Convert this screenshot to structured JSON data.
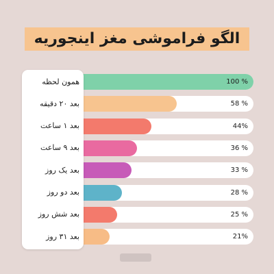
{
  "title": "الگو فراموشی مغز اینجوریه",
  "chart_data": {
    "type": "bar",
    "orientation": "horizontal",
    "xlim": [
      0,
      100
    ],
    "categories": [
      "همون لحظه",
      "بعد ۲۰ دقیقه",
      "بعد ۱ ساعت",
      "بعد ۹ ساعت",
      "بعد یک روز",
      "بعد دو روز",
      "بعد شش روز",
      "بعد ۳۱ روز"
    ],
    "values": [
      100,
      58,
      44,
      36,
      33,
      28,
      25,
      21
    ],
    "value_labels": [
      "100 %",
      "58 %",
      "44%",
      "36 %",
      "33 %",
      "28 %",
      "25 %",
      "21%"
    ],
    "colors": [
      "#7fd1a9",
      "#f7c48f",
      "#f37a6c",
      "#e96aa0",
      "#c75bb8",
      "#5eb3c9",
      "#f37a6c",
      "#f7bc86"
    ]
  }
}
